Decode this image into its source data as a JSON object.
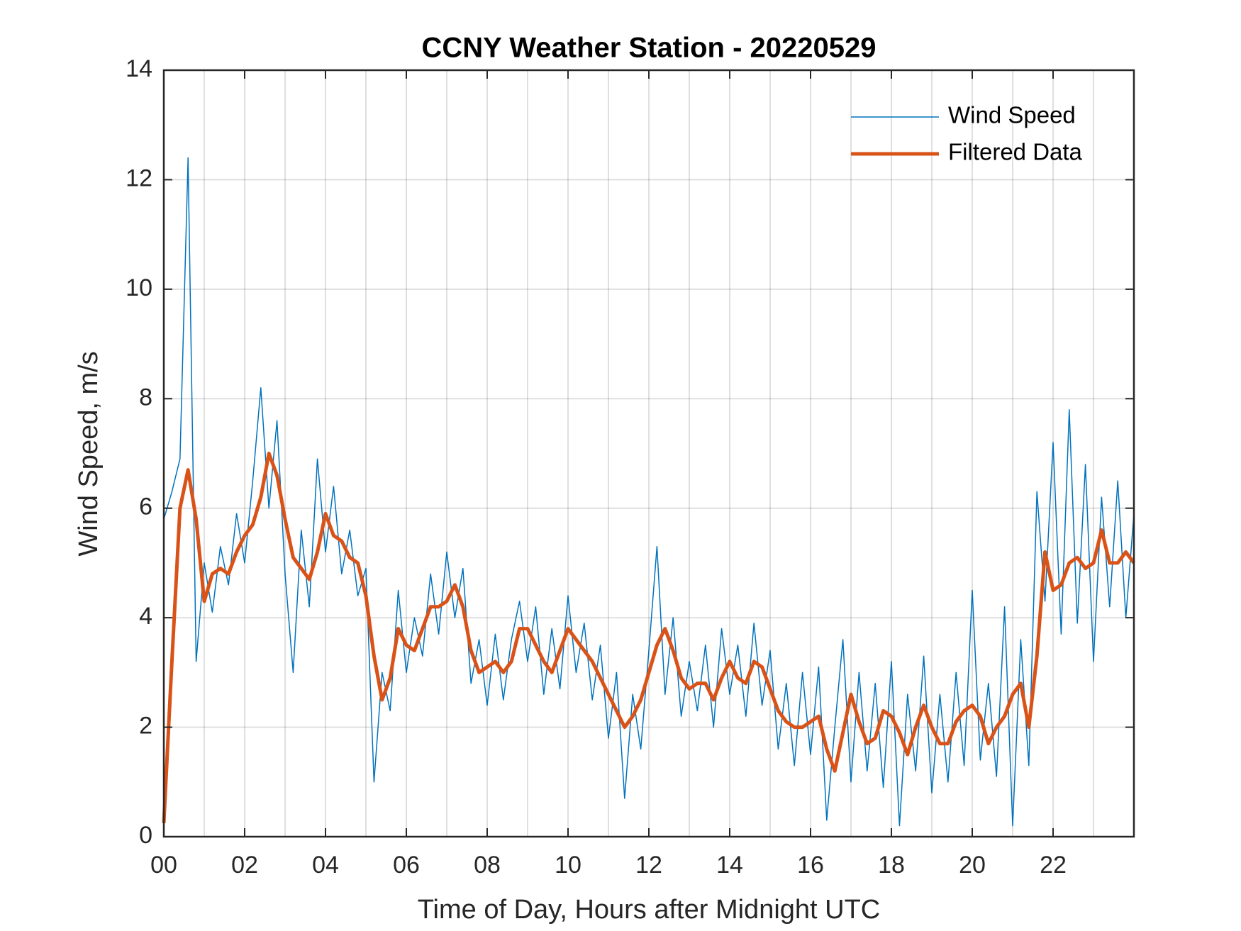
{
  "chart_data": {
    "type": "line",
    "title": "CCNY Weather Station - 20220529",
    "xlabel": "Time of Day, Hours after Midnight UTC",
    "ylabel": "Wind Speed, m/s",
    "xlim": [
      0,
      24
    ],
    "ylim": [
      0,
      14
    ],
    "xticks": [
      {
        "value": 0,
        "label": "00"
      },
      {
        "value": 2,
        "label": "02"
      },
      {
        "value": 4,
        "label": "04"
      },
      {
        "value": 6,
        "label": "06"
      },
      {
        "value": 8,
        "label": "08"
      },
      {
        "value": 10,
        "label": "10"
      },
      {
        "value": 12,
        "label": "12"
      },
      {
        "value": 14,
        "label": "14"
      },
      {
        "value": 16,
        "label": "16"
      },
      {
        "value": 18,
        "label": "18"
      },
      {
        "value": 20,
        "label": "20"
      },
      {
        "value": 22,
        "label": "22"
      }
    ],
    "xminorgrid": [
      1,
      3,
      5,
      7,
      9,
      11,
      13,
      15,
      17,
      19,
      21,
      23
    ],
    "yticks": [
      0,
      2,
      4,
      6,
      8,
      10,
      12,
      14
    ],
    "grid": true,
    "legend_position": "upper-right",
    "x": [
      0,
      0.2,
      0.4,
      0.6,
      0.8,
      1,
      1.2,
      1.4,
      1.6,
      1.8,
      2,
      2.2,
      2.4,
      2.6,
      2.8,
      3,
      3.2,
      3.4,
      3.6,
      3.8,
      4,
      4.2,
      4.4,
      4.6,
      4.8,
      5,
      5.2,
      5.4,
      5.6,
      5.8,
      6,
      6.2,
      6.4,
      6.6,
      6.8,
      7,
      7.2,
      7.4,
      7.6,
      7.8,
      8,
      8.2,
      8.4,
      8.6,
      8.8,
      9,
      9.2,
      9.4,
      9.6,
      9.8,
      10,
      10.2,
      10.4,
      10.6,
      10.8,
      11,
      11.2,
      11.4,
      11.6,
      11.8,
      12,
      12.2,
      12.4,
      12.6,
      12.8,
      13,
      13.2,
      13.4,
      13.6,
      13.8,
      14,
      14.2,
      14.4,
      14.6,
      14.8,
      15,
      15.2,
      15.4,
      15.6,
      15.8,
      16,
      16.2,
      16.4,
      16.6,
      16.8,
      17,
      17.2,
      17.4,
      17.6,
      17.8,
      18,
      18.2,
      18.4,
      18.6,
      18.8,
      19,
      19.2,
      19.4,
      19.6,
      19.8,
      20,
      20.2,
      20.4,
      20.6,
      20.8,
      21,
      21.2,
      21.4,
      21.6,
      21.8,
      22,
      22.2,
      22.4,
      22.6,
      22.8,
      23,
      23.2,
      23.4,
      23.6,
      23.8,
      24
    ],
    "series": [
      {
        "name": "Wind Speed",
        "color": "#0072BD",
        "width": 1.5,
        "values": [
          5.8,
          6.3,
          6.9,
          12.4,
          3.2,
          5.0,
          4.1,
          5.3,
          4.6,
          5.9,
          5.0,
          6.5,
          8.2,
          6.0,
          7.6,
          4.8,
          3.0,
          5.6,
          4.2,
          6.9,
          5.2,
          6.4,
          4.8,
          5.6,
          4.4,
          4.9,
          1.0,
          3.0,
          2.3,
          4.5,
          3.0,
          4.0,
          3.3,
          4.8,
          3.7,
          5.2,
          4.0,
          4.9,
          2.8,
          3.6,
          2.4,
          3.7,
          2.5,
          3.6,
          4.3,
          3.2,
          4.2,
          2.6,
          3.8,
          2.7,
          4.4,
          3.0,
          3.9,
          2.5,
          3.5,
          1.8,
          3.0,
          0.7,
          2.6,
          1.6,
          3.4,
          5.3,
          2.6,
          4.0,
          2.2,
          3.2,
          2.3,
          3.5,
          2.0,
          3.8,
          2.6,
          3.5,
          2.2,
          3.9,
          2.4,
          3.4,
          1.6,
          2.8,
          1.3,
          3.0,
          1.5,
          3.1,
          0.3,
          2.0,
          3.6,
          1.0,
          3.0,
          1.2,
          2.8,
          0.9,
          3.2,
          0.2,
          2.6,
          1.2,
          3.3,
          0.8,
          2.6,
          1.0,
          3.0,
          1.3,
          4.5,
          1.4,
          2.8,
          1.1,
          4.2,
          0.2,
          3.6,
          1.3,
          6.3,
          4.3,
          7.2,
          3.7,
          7.8,
          3.9,
          6.8,
          3.2,
          6.2,
          4.2,
          6.5,
          4.0,
          5.9
        ]
      },
      {
        "name": "Filtered Data",
        "color": "#D95319",
        "width": 5,
        "values": [
          0.25,
          3.2,
          6.0,
          6.7,
          5.8,
          4.3,
          4.8,
          4.9,
          4.8,
          5.2,
          5.5,
          5.7,
          6.2,
          7.0,
          6.6,
          5.8,
          5.1,
          4.9,
          4.7,
          5.2,
          5.9,
          5.5,
          5.4,
          5.1,
          5.0,
          4.4,
          3.3,
          2.5,
          2.9,
          3.8,
          3.5,
          3.4,
          3.8,
          4.2,
          4.2,
          4.3,
          4.6,
          4.2,
          3.4,
          3.0,
          3.1,
          3.2,
          3.0,
          3.2,
          3.8,
          3.8,
          3.5,
          3.2,
          3.0,
          3.4,
          3.8,
          3.6,
          3.4,
          3.2,
          2.9,
          2.6,
          2.3,
          2.0,
          2.2,
          2.5,
          3.0,
          3.5,
          3.8,
          3.4,
          2.9,
          2.7,
          2.8,
          2.8,
          2.5,
          2.9,
          3.2,
          2.9,
          2.8,
          3.2,
          3.1,
          2.7,
          2.3,
          2.1,
          2.0,
          2.0,
          2.1,
          2.2,
          1.6,
          1.2,
          1.9,
          2.6,
          2.1,
          1.7,
          1.8,
          2.3,
          2.2,
          1.9,
          1.5,
          2.0,
          2.4,
          2.0,
          1.7,
          1.7,
          2.1,
          2.3,
          2.4,
          2.2,
          1.7,
          2.0,
          2.2,
          2.6,
          2.8,
          2.0,
          3.3,
          5.2,
          4.5,
          4.6,
          5.0,
          5.1,
          4.9,
          5.0,
          5.6,
          5.0,
          5.0,
          5.2,
          5.0
        ]
      }
    ]
  }
}
